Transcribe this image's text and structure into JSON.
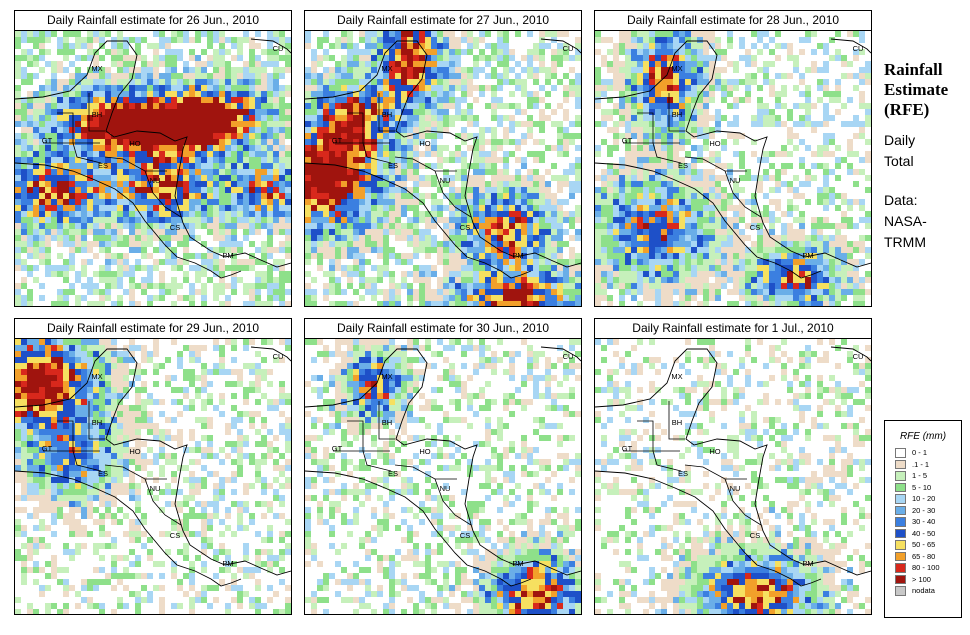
{
  "panels": [
    {
      "title": "Daily Rainfall estimate for  26 Jun., 2010"
    },
    {
      "title": "Daily Rainfall estimate for  27 Jun., 2010"
    },
    {
      "title": "Daily Rainfall estimate for  28 Jun., 2010"
    },
    {
      "title": "Daily Rainfall estimate for  29 Jun., 2010"
    },
    {
      "title": "Daily Rainfall estimate for  30 Jun., 2010"
    },
    {
      "title": "Daily Rainfall estimate for  1 Jul., 2010"
    }
  ],
  "country_labels": [
    "CU",
    "MX",
    "BH",
    "GT",
    "HO",
    "ES",
    "NU",
    "CS",
    "PM"
  ],
  "side": {
    "title_line1": "Rainfall",
    "title_line2": "Estimate",
    "title_line3": "(RFE)",
    "period_line1": "Daily",
    "period_line2": "Total",
    "source_line1": "Data:",
    "source_line2": "NASA-",
    "source_line3": "TRMM"
  },
  "legend": {
    "title": "RFE (mm)",
    "items": [
      {
        "label": "0 - 1",
        "color": "#ffffff"
      },
      {
        "label": ".1 - 1",
        "color": "#eedcc8"
      },
      {
        "label": "1 - 5",
        "color": "#c6f0bb"
      },
      {
        "label": "5 - 10",
        "color": "#8ee08a"
      },
      {
        "label": "10 - 20",
        "color": "#a8d6f4"
      },
      {
        "label": "20 - 30",
        "color": "#6aaee8"
      },
      {
        "label": "30 - 40",
        "color": "#3b7fe0"
      },
      {
        "label": "40 - 50",
        "color": "#1e50c8"
      },
      {
        "label": "50 - 65",
        "color": "#f6e060"
      },
      {
        "label": "65 - 80",
        "color": "#f2a02a"
      },
      {
        "label": "80 - 100",
        "color": "#d8281c"
      },
      {
        "label": "> 100",
        "color": "#a0140e"
      },
      {
        "label": "nodata",
        "color": "#c8c8c8"
      }
    ]
  }
}
